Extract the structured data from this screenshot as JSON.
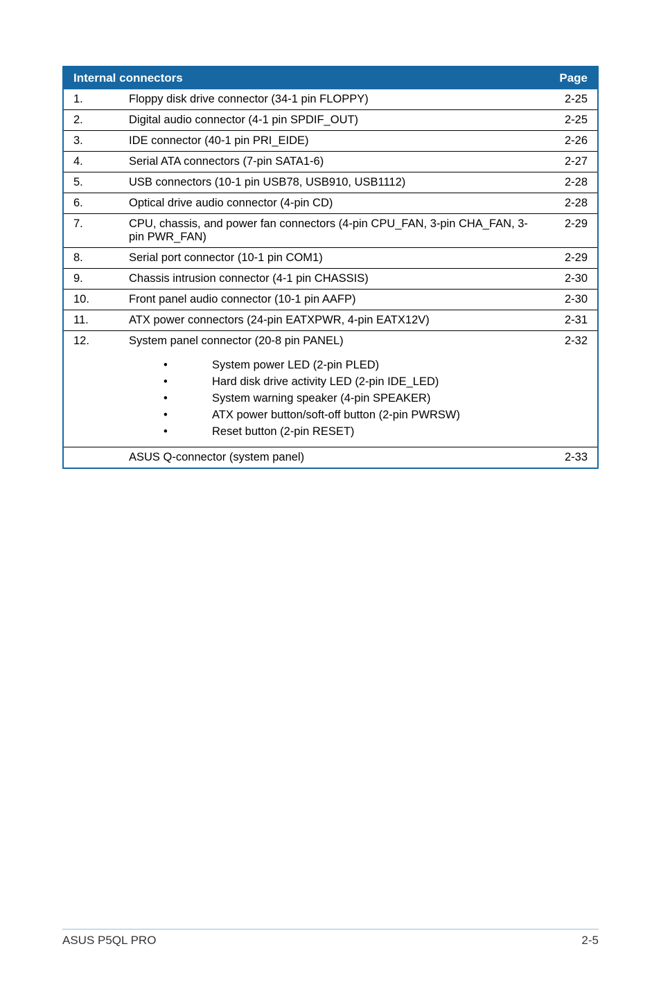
{
  "table": {
    "header_bg": "#1768a2",
    "header_fg": "#ffffff",
    "border_color": "#1768a2",
    "title": "Internal connectors",
    "page_label": "Page",
    "rows": [
      {
        "n": "1.",
        "desc": "Floppy disk drive connector (34-1 pin FLOPPY)",
        "pg": "2-25"
      },
      {
        "n": "2.",
        "desc": "Digital audio connector (4-1 pin SPDIF_OUT)",
        "pg": "2-25"
      },
      {
        "n": "3.",
        "desc": "IDE connector (40-1 pin PRI_EIDE)",
        "pg": "2-26"
      },
      {
        "n": "4.",
        "desc": "Serial ATA connectors (7-pin SATA1-6)",
        "pg": "2-27"
      },
      {
        "n": "5.",
        "desc": "USB connectors (10-1 pin USB78, USB910, USB1112)",
        "pg": "2-28"
      },
      {
        "n": "6.",
        "desc": "Optical drive audio connector (4-pin CD)",
        "pg": "2-28"
      },
      {
        "n": "7.",
        "desc": "CPU, chassis, and power fan connectors (4-pin CPU_FAN, 3-pin CHA_FAN, 3-pin PWR_FAN)",
        "pg": "2-29"
      },
      {
        "n": "8.",
        "desc": "Serial port connector (10-1 pin COM1)",
        "pg": "2-29"
      },
      {
        "n": "9.",
        "desc": "Chassis intrusion connector (4-1 pin CHASSIS)",
        "pg": "2-30"
      },
      {
        "n": "10.",
        "desc": "Front panel audio connector (10-1 pin AAFP)",
        "pg": "2-30"
      },
      {
        "n": "11.",
        "desc": "ATX power connectors (24-pin EATXPWR, 4-pin EATX12V)",
        "pg": "2-31"
      }
    ],
    "row12": {
      "n": "12.",
      "desc": "System panel connector (20-8 pin PANEL)",
      "pg": "2-32"
    },
    "bullets": [
      "System power LED (2-pin PLED)",
      "Hard disk drive activity LED (2-pin IDE_LED)",
      "System warning speaker (4-pin SPEAKER)",
      "ATX power button/soft-off button (2-pin PWRSW)",
      "Reset button (2-pin RESET)"
    ],
    "last": {
      "desc": "ASUS Q-connector (system panel)",
      "pg": "2-33"
    }
  },
  "footer": {
    "left": "ASUS P5QL PRO",
    "right": "2-5"
  }
}
